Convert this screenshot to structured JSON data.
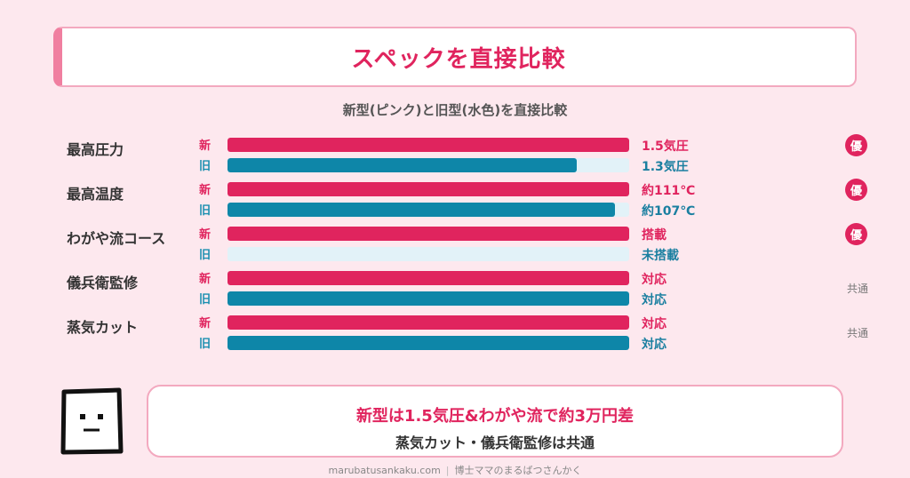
{
  "title": "スペックを直接比較",
  "subtitle": "新型(ピンク)と旧型(水色)を直接比較",
  "labels": {
    "new": "新",
    "old": "旧"
  },
  "rows": [
    {
      "name": "最高圧力",
      "new_value": "1.5気圧",
      "old_value": "1.3気圧",
      "new_fraction": 1.0,
      "old_fraction": 0.87,
      "badge": "優",
      "common": ""
    },
    {
      "name": "最高温度",
      "new_value": "約111℃",
      "old_value": "約107℃",
      "new_fraction": 1.0,
      "old_fraction": 0.964,
      "badge": "優",
      "common": ""
    },
    {
      "name": "わがや流コース",
      "new_value": "搭載",
      "old_value": "未搭載",
      "new_fraction": 1.0,
      "old_fraction": 0.0,
      "badge": "優",
      "common": ""
    },
    {
      "name": "儀兵衛監修",
      "new_value": "対応",
      "old_value": "対応",
      "new_fraction": 1.0,
      "old_fraction": 1.0,
      "badge": "",
      "common": "共通"
    },
    {
      "name": "蒸気カット",
      "new_value": "対応",
      "old_value": "対応",
      "new_fraction": 1.0,
      "old_fraction": 1.0,
      "badge": "",
      "common": "共通"
    }
  ],
  "summary": {
    "line1": "新型は1.5気圧&わがや流で約3万円差",
    "line2": "蒸気カット・儀兵衛監修は共通"
  },
  "footer": {
    "site": "marubatusankaku.com",
    "separator": "|",
    "author": "博士ママのまるばつさんかく"
  },
  "colors": {
    "new": "#e0245e",
    "old": "#0e86a8",
    "track": "#e2f2f8",
    "background": "#fde8ee"
  },
  "icons": {
    "mascot": "square-face-mascot-icon"
  }
}
